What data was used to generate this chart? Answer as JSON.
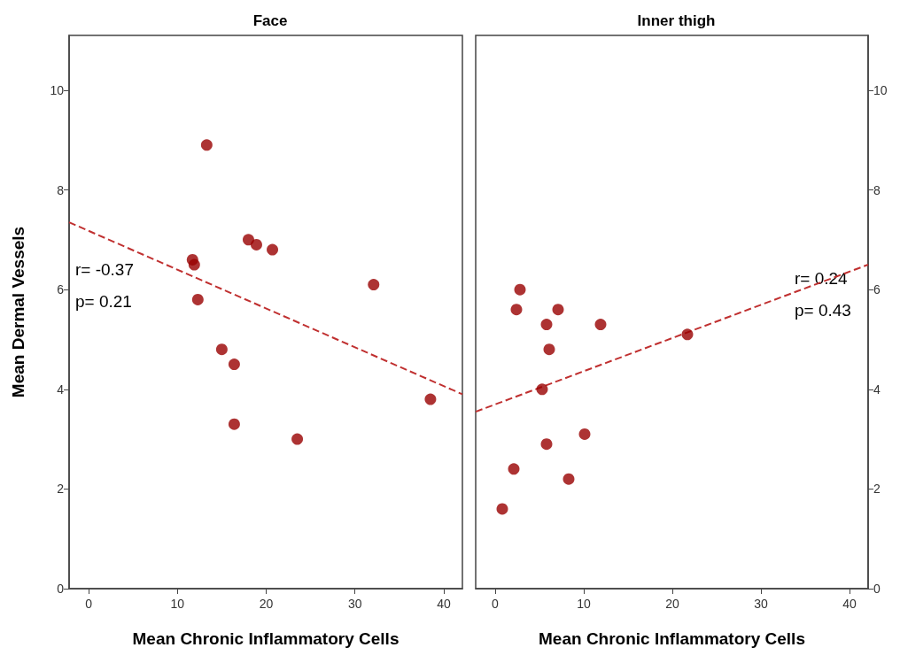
{
  "chart_data": [
    {
      "type": "scatter",
      "title": "Face",
      "xlabel": "Mean Chronic Inflammatory Cells",
      "ylabel": "Mean Dermal Vessels",
      "xlim": [
        -2.2,
        42.1
      ],
      "ylim": [
        0,
        11.1
      ],
      "xticks": [
        0,
        10,
        20,
        30,
        40
      ],
      "yticks": [
        0,
        2,
        4,
        6,
        8,
        10
      ],
      "grid": false,
      "annotations": [
        "r= -0.37",
        "p= 0.21"
      ],
      "series": [
        {
          "marker": "circle",
          "color": "#990000",
          "x": [
            13.3,
            11.7,
            11.9,
            12.3,
            18,
            18.9,
            20.7,
            32.1,
            15,
            16.4,
            16.4,
            23.5,
            38.5
          ],
          "values": [
            8.9,
            6.6,
            6.5,
            5.8,
            7.0,
            6.9,
            6.8,
            6.1,
            4.8,
            4.5,
            3.3,
            3.0,
            3.8
          ]
        },
        {
          "type": "line",
          "marker": "none",
          "line_style": "dashed",
          "color": "#c03030",
          "x": [
            -2.2,
            42.1
          ],
          "values": [
            7.35,
            3.9
          ]
        }
      ]
    },
    {
      "type": "scatter",
      "title": "Inner thigh",
      "xlabel": "Mean Chronic Inflammatory Cells",
      "xlim": [
        -2.2,
        42.1
      ],
      "ylim": [
        0,
        11.1
      ],
      "xticks": [
        0,
        10,
        20,
        30,
        40
      ],
      "yticks": [
        0,
        2,
        4,
        6,
        8,
        10
      ],
      "grid": false,
      "annotations": [
        "r= 0.24",
        "p= 0.43"
      ],
      "series": [
        {
          "marker": "circle",
          "color": "#990000",
          "x": [
            0.8,
            2.1,
            2.4,
            2.8,
            5.8,
            6.1,
            7.1,
            5.3,
            5.8,
            10.1,
            8.3,
            11.9,
            21.7
          ],
          "values": [
            1.6,
            2.4,
            5.6,
            6.0,
            5.3,
            4.8,
            5.6,
            4.0,
            2.9,
            3.1,
            2.2,
            5.3,
            5.1
          ]
        },
        {
          "type": "line",
          "marker": "none",
          "line_style": "dashed",
          "color": "#c03030",
          "x": [
            -2.2,
            42.1
          ],
          "values": [
            3.55,
            6.5
          ]
        }
      ]
    }
  ]
}
